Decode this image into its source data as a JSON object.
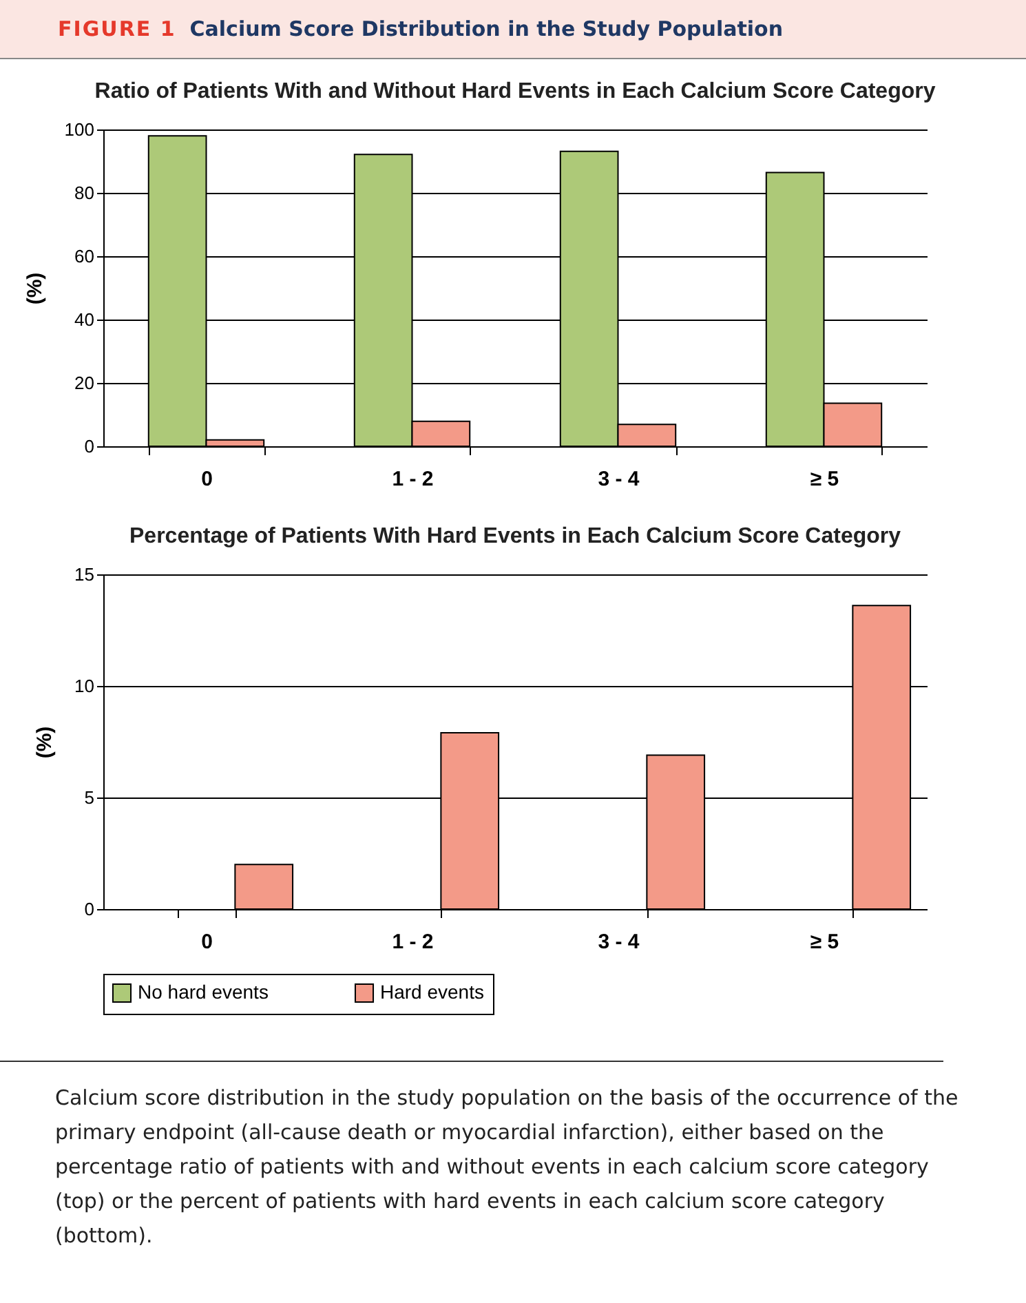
{
  "chart_data": [
    {
      "type": "bar",
      "title": "Ratio of Patients With and Without Hard Events in Each Calcium Score Category",
      "ylabel": "(%)",
      "categories": [
        "0",
        "1 - 2",
        "3 - 4",
        "≥ 5"
      ],
      "series": [
        {
          "name": "No hard events",
          "color": "#adc978",
          "values": [
            98,
            92.1,
            93.1,
            86.4
          ]
        },
        {
          "name": "Hard events",
          "color": "#f39a88",
          "values": [
            2,
            7.9,
            6.9,
            13.6
          ]
        }
      ],
      "ylim": [
        0,
        100
      ],
      "yticks": [
        0,
        20,
        40,
        60,
        80,
        100
      ],
      "grid": "y",
      "legend": "bottom",
      "annotations": [
        "FIGURE 1",
        "Calcium Score Distribution in the Study Population"
      ]
    },
    {
      "type": "bar",
      "title": "Percentage of Patients With Hard Events in Each Calcium Score Category",
      "ylabel": "(%)",
      "categories": [
        "0",
        "1 - 2",
        "3 - 4",
        "≥ 5"
      ],
      "series": [
        {
          "name": "Hard events",
          "color": "#f39a88",
          "values": [
            2,
            7.9,
            6.9,
            13.6
          ]
        }
      ],
      "ylim": [
        0,
        15
      ],
      "yticks": [
        0,
        5,
        10,
        15
      ],
      "grid": "y",
      "legend": "bottom",
      "annotations": [
        "Calcium score distribution in the study population on the basis of the occurrence of the primary endpoint (all-cause death or myocardial infarction), either based on the percentage ratio of patients with and without events in each calcium score category (top) or the percent of patients with hard events in each calcium score category (bottom)."
      ]
    }
  ]
}
